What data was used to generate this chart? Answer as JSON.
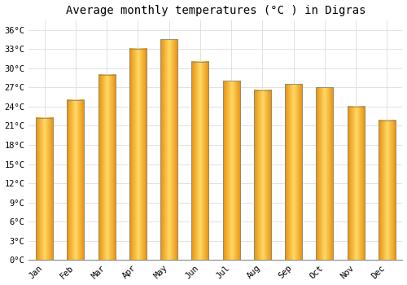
{
  "title": "Average monthly temperatures (°C ) in Digras",
  "months": [
    "Jan",
    "Feb",
    "Mar",
    "Apr",
    "May",
    "Jun",
    "Jul",
    "Aug",
    "Sep",
    "Oct",
    "Nov",
    "Dec"
  ],
  "values": [
    22.2,
    25.0,
    29.0,
    33.0,
    34.5,
    31.0,
    28.0,
    26.5,
    27.5,
    27.0,
    24.0,
    21.8
  ],
  "bar_color_light": "#FFD966",
  "bar_color_dark": "#E8900A",
  "bar_edge_color": "#888888",
  "background_color": "#FFFFFF",
  "grid_color": "#DDDDDD",
  "ytick_labels": [
    "0°C",
    "3°C",
    "6°C",
    "9°C",
    "12°C",
    "15°C",
    "18°C",
    "21°C",
    "24°C",
    "27°C",
    "30°C",
    "33°C",
    "36°C"
  ],
  "ytick_values": [
    0,
    3,
    6,
    9,
    12,
    15,
    18,
    21,
    24,
    27,
    30,
    33,
    36
  ],
  "ylim": [
    0,
    37.5
  ],
  "title_fontsize": 10,
  "tick_fontsize": 7.5,
  "font_family": "monospace",
  "bar_width": 0.55
}
